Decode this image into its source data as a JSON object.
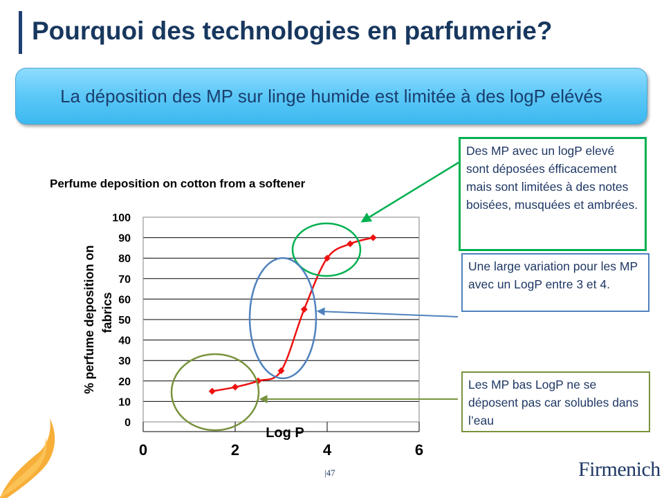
{
  "slide": {
    "title": "Pourquoi des technologies en parfumerie?",
    "banner": "La déposition des MP sur linge humide est limitée à des logP elévés",
    "page_number": "47",
    "logo_text": "Firmenich"
  },
  "callouts": {
    "high": "Des MP avec un logP elevé sont déposées éfficacement  mais sont limitées à des notes boisées, musquées et ambrées.",
    "mid": "Une large variation pour les MP avec un LogP entre 3 et 4.",
    "low": "Les MP bas LogP ne se déposent pas car solubles dans l’eau"
  },
  "colors": {
    "series": "#ee1111",
    "high_ellipse": "#00b050",
    "mid_ellipse": "#4f81bd",
    "low_ellipse": "#77933c",
    "title": "#17375e"
  },
  "chart_data": {
    "type": "line",
    "title": "Perfume deposition on cotton from a softener",
    "xlabel": "Log P",
    "ylabel": "% perfume deposition on fabrics",
    "xlim": [
      0,
      6
    ],
    "ylim": [
      0,
      100
    ],
    "xticks": [
      0,
      2,
      4,
      6
    ],
    "yticks": [
      0,
      10,
      20,
      30,
      40,
      50,
      60,
      70,
      80,
      90,
      100
    ],
    "grid": "horizontal",
    "smooth": true,
    "series": [
      {
        "x": [
          1.5,
          2.0,
          2.5,
          3.0,
          3.5,
          4.0,
          4.5,
          5.0
        ],
        "y": [
          15,
          17,
          20,
          25,
          55,
          80,
          87,
          90
        ]
      }
    ]
  }
}
